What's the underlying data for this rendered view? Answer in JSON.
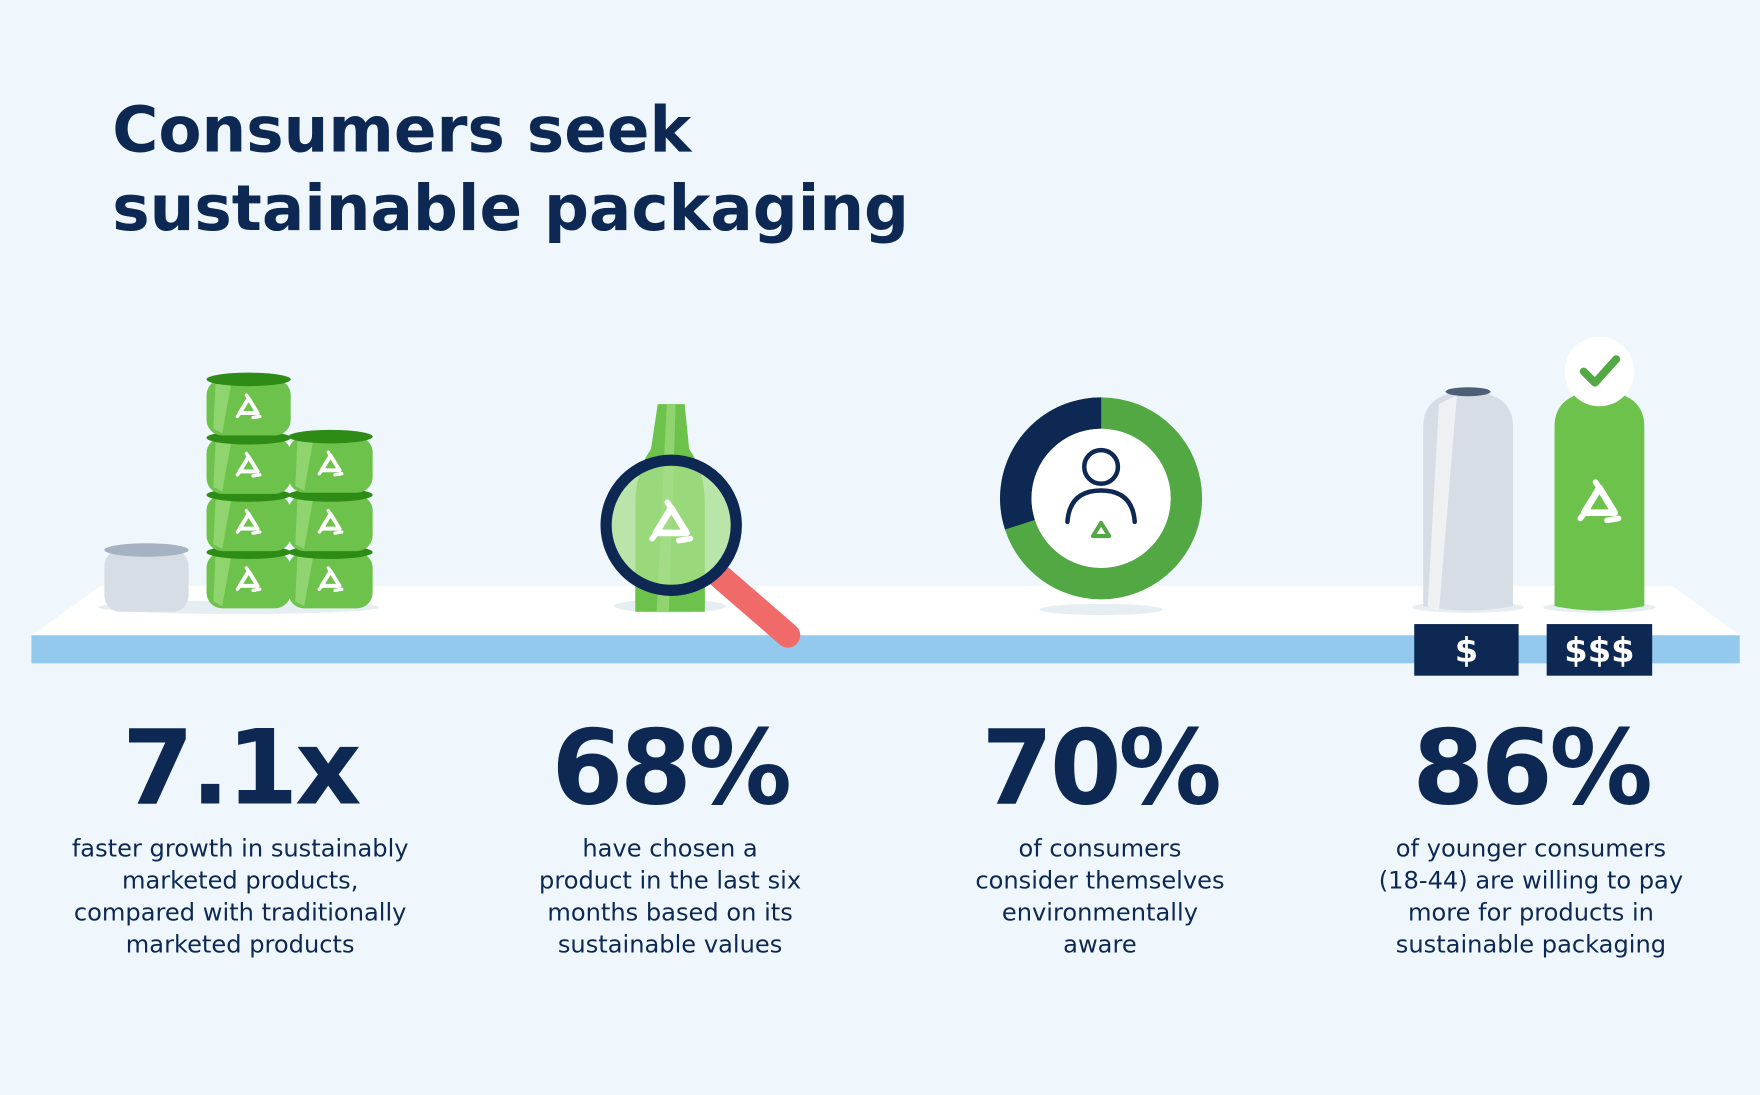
{
  "header": {
    "title_lines": [
      "Consumers seek",
      "sustainable packaging"
    ]
  },
  "price_tags": [
    "$",
    "$$$"
  ],
  "stats": [
    {
      "value": "7.1x",
      "description": [
        "faster growth in sustainably",
        "marketed products,",
        "compared with traditionally",
        "marketed products"
      ]
    },
    {
      "value": "68%",
      "description": [
        "have chosen a",
        "product in the last six",
        "months based on its",
        "sustainable values"
      ]
    },
    {
      "value": "70%",
      "description": [
        "of consumers",
        "consider themselves",
        "environmentally",
        "aware"
      ]
    },
    {
      "value": "86%",
      "description": [
        "of younger consumers",
        "(18-44) are willing to pay",
        "more for products in",
        "sustainable packaging"
      ]
    }
  ]
}
